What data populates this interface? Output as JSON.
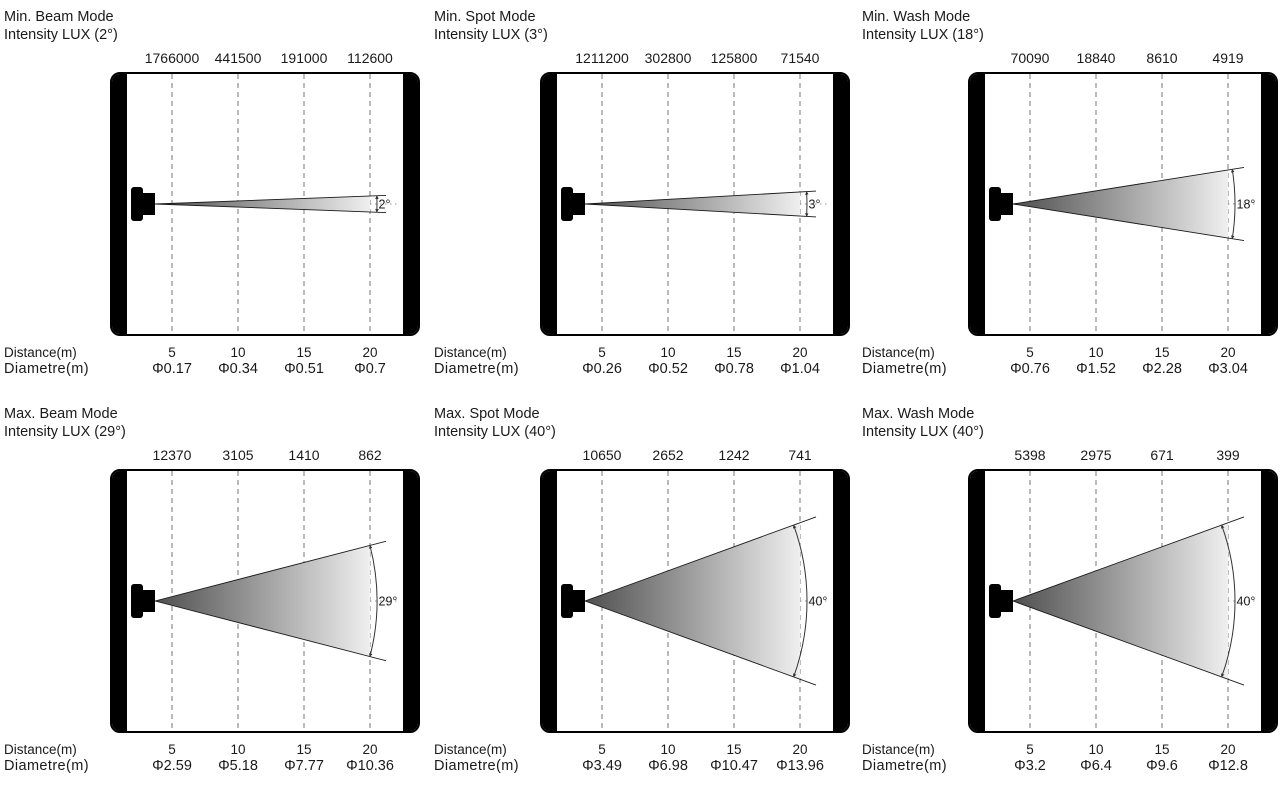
{
  "labels": {
    "distance": "Distance(m)",
    "diametre": "Diametre(m)"
  },
  "colors": {
    "wall": "#000000",
    "frame_border": "#000000",
    "dashed_line": "#777777",
    "center_axis": "#999999",
    "cone_dark": "#4f4f4f",
    "cone_light": "#efefef",
    "cone_outline": "#1a1a1a",
    "arc": "#333333",
    "text": "#1a1a1a"
  },
  "panels": [
    {
      "title_line1": "Min. Beam Mode",
      "title_line2": "Intensity LUX (2°)",
      "angle_deg": 2,
      "angle_label": "2°",
      "intensities": [
        "1766000",
        "441500",
        "191000",
        "112600"
      ],
      "distances": [
        "5",
        "10",
        "15",
        "20"
      ],
      "diameters": [
        "Φ0.17",
        "Φ0.34",
        "Φ0.51",
        "Φ0.7"
      ]
    },
    {
      "title_line1": "Min. Spot Mode",
      "title_line2": "Intensity LUX (3°)",
      "angle_deg": 3,
      "angle_label": "3°",
      "intensities": [
        "1211200",
        "302800",
        "125800",
        "71540"
      ],
      "distances": [
        "5",
        "10",
        "15",
        "20"
      ],
      "diameters": [
        "Φ0.26",
        "Φ0.52",
        "Φ0.78",
        "Φ1.04"
      ]
    },
    {
      "title_line1": "Min. Wash Mode",
      "title_line2": "Intensity LUX (18°)",
      "angle_deg": 18,
      "angle_label": "18°",
      "intensities": [
        "70090",
        "18840",
        "8610",
        "4919"
      ],
      "distances": [
        "5",
        "10",
        "15",
        "20"
      ],
      "diameters": [
        "Φ0.76",
        "Φ1.52",
        "Φ2.28",
        "Φ3.04"
      ]
    },
    {
      "title_line1": "Max. Beam Mode",
      "title_line2": "Intensity LUX (29°)",
      "angle_deg": 29,
      "angle_label": "29°",
      "intensities": [
        "12370",
        "3105",
        "1410",
        "862"
      ],
      "distances": [
        "5",
        "10",
        "15",
        "20"
      ],
      "diameters": [
        "Φ2.59",
        "Φ5.18",
        "Φ7.77",
        "Φ10.36"
      ]
    },
    {
      "title_line1": "Max. Spot Mode",
      "title_line2": "Intensity LUX (40°)",
      "angle_deg": 40,
      "angle_label": "40°",
      "intensities": [
        "10650",
        "2652",
        "1242",
        "741"
      ],
      "distances": [
        "5",
        "10",
        "15",
        "20"
      ],
      "diameters": [
        "Φ3.49",
        "Φ6.98",
        "Φ10.47",
        "Φ13.96"
      ]
    },
    {
      "title_line1": "Max. Wash Mode",
      "title_line2": "Intensity LUX (40°)",
      "angle_deg": 40,
      "angle_label": "40°",
      "intensities": [
        "5398",
        "2975",
        "671",
        "399"
      ],
      "distances": [
        "5",
        "10",
        "15",
        "20"
      ],
      "diameters": [
        "Φ3.2",
        "Φ6.4",
        "Φ9.6",
        "Φ12.8"
      ]
    }
  ]
}
